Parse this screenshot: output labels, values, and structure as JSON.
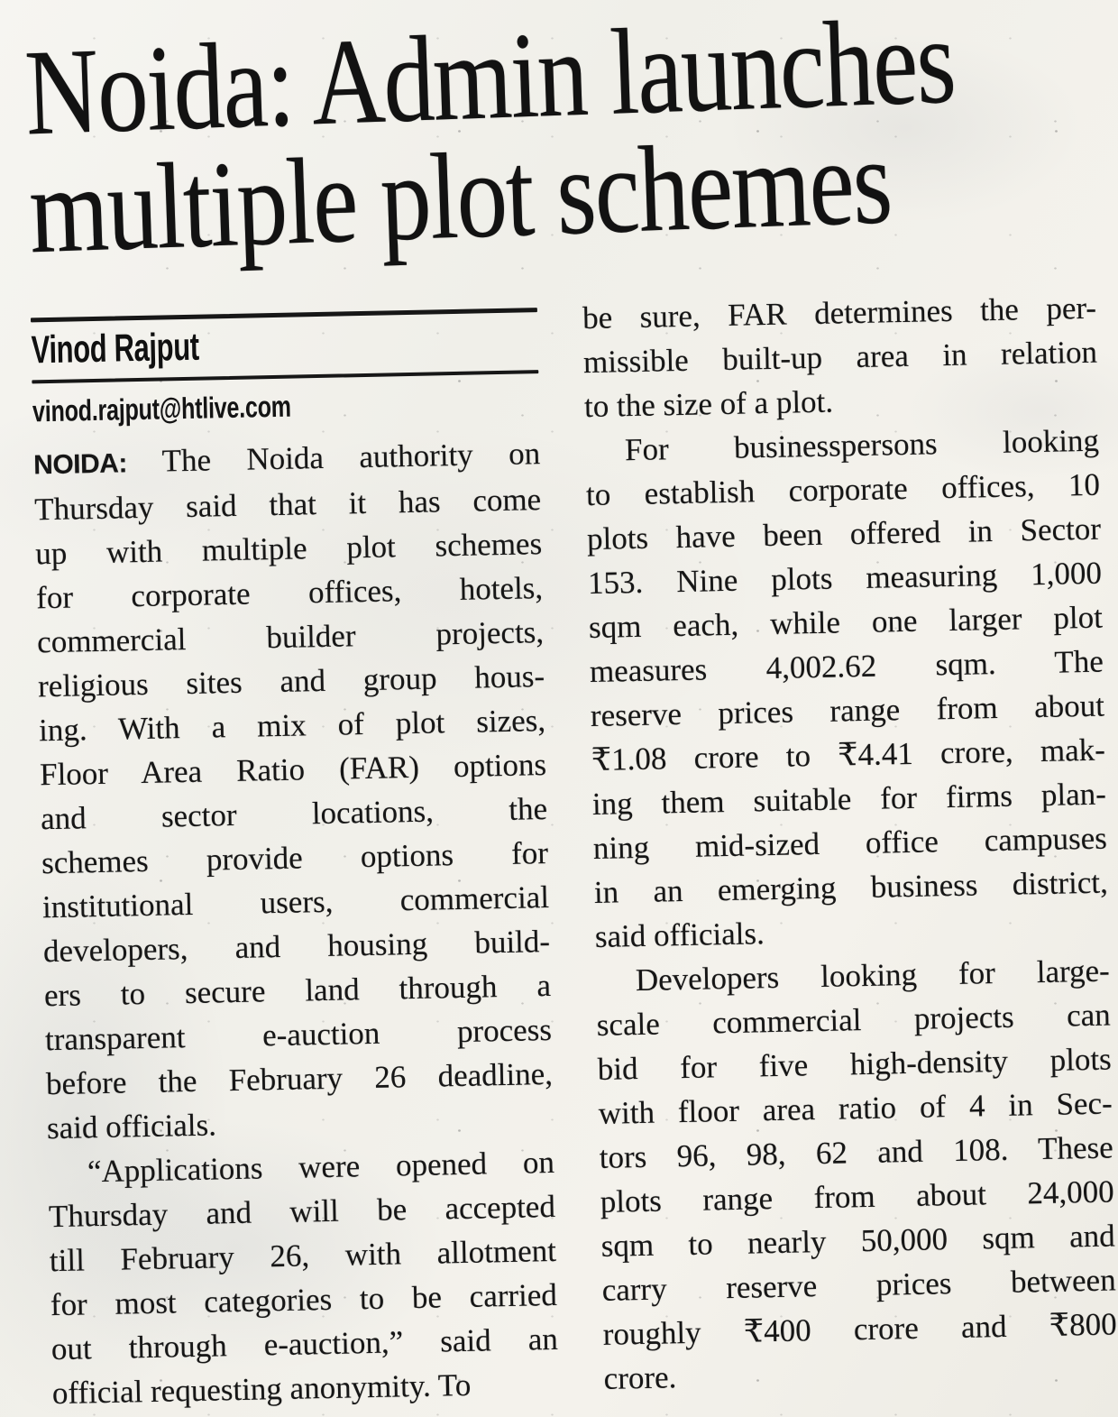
{
  "headline": {
    "line1": "Noida: Admin launches",
    "line2": "multiple plot schemes"
  },
  "byline": {
    "author": "Vinod Rajput",
    "email": "vinod.rajput@htlive.com"
  },
  "article": {
    "columns": [
      {
        "paragraphs": [
          {
            "lead": "NOIDA:",
            "indent": false,
            "lines": [
              "The Noida authority on",
              "Thursday said that it has come",
              "up with multiple plot schemes",
              "for corporate offices, hotels,",
              "commercial builder projects,",
              "religious sites and group hous-",
              "ing. With a mix of plot sizes,",
              "Floor Area Ratio (FAR) options",
              "and sector locations, the",
              "schemes provide options for",
              "institutional users, commercial",
              "developers, and housing build-",
              "ers to secure land through a",
              "transparent e-auction process",
              "before the February 26 deadline,",
              "said officials."
            ]
          },
          {
            "indent": true,
            "lines": [
              "“Applications were opened on",
              "Thursday and will be accepted",
              "till February 26, with allotment",
              "for most categories to be carried",
              "out through e-auction,” said an",
              "official requesting anonymity. To"
            ]
          }
        ]
      },
      {
        "paragraphs": [
          {
            "indent": false,
            "lines": [
              "be sure, FAR determines the per-",
              "missible built-up area in relation",
              "to the size of a plot."
            ]
          },
          {
            "indent": true,
            "lines": [
              "For businesspersons looking",
              "to establish corporate offices, 10",
              "plots have been offered in Sector",
              "153. Nine plots measuring 1,000",
              "sqm each, while one larger plot",
              "measures 4,002.62 sqm. The",
              "reserve prices range from about",
              "₹1.08 crore to ₹4.41 crore, mak-",
              "ing them suitable for firms plan-",
              "ning mid-sized office campuses",
              "in an emerging business district,",
              "said officials."
            ]
          },
          {
            "indent": true,
            "lines": [
              "Developers looking for large-",
              "scale commercial projects can",
              "bid for five high-density plots",
              "with floor area ratio of 4 in Sec-",
              "tors 96, 98, 62 and 108. These",
              "plots range from about 24,000",
              "sqm to nearly 50,000 sqm and",
              "carry reserve prices between",
              "roughly ₹400 crore and ₹800",
              "crore."
            ]
          }
        ]
      }
    ]
  },
  "colors": {
    "ink": "#161616",
    "paper": "#f2f0ea"
  }
}
